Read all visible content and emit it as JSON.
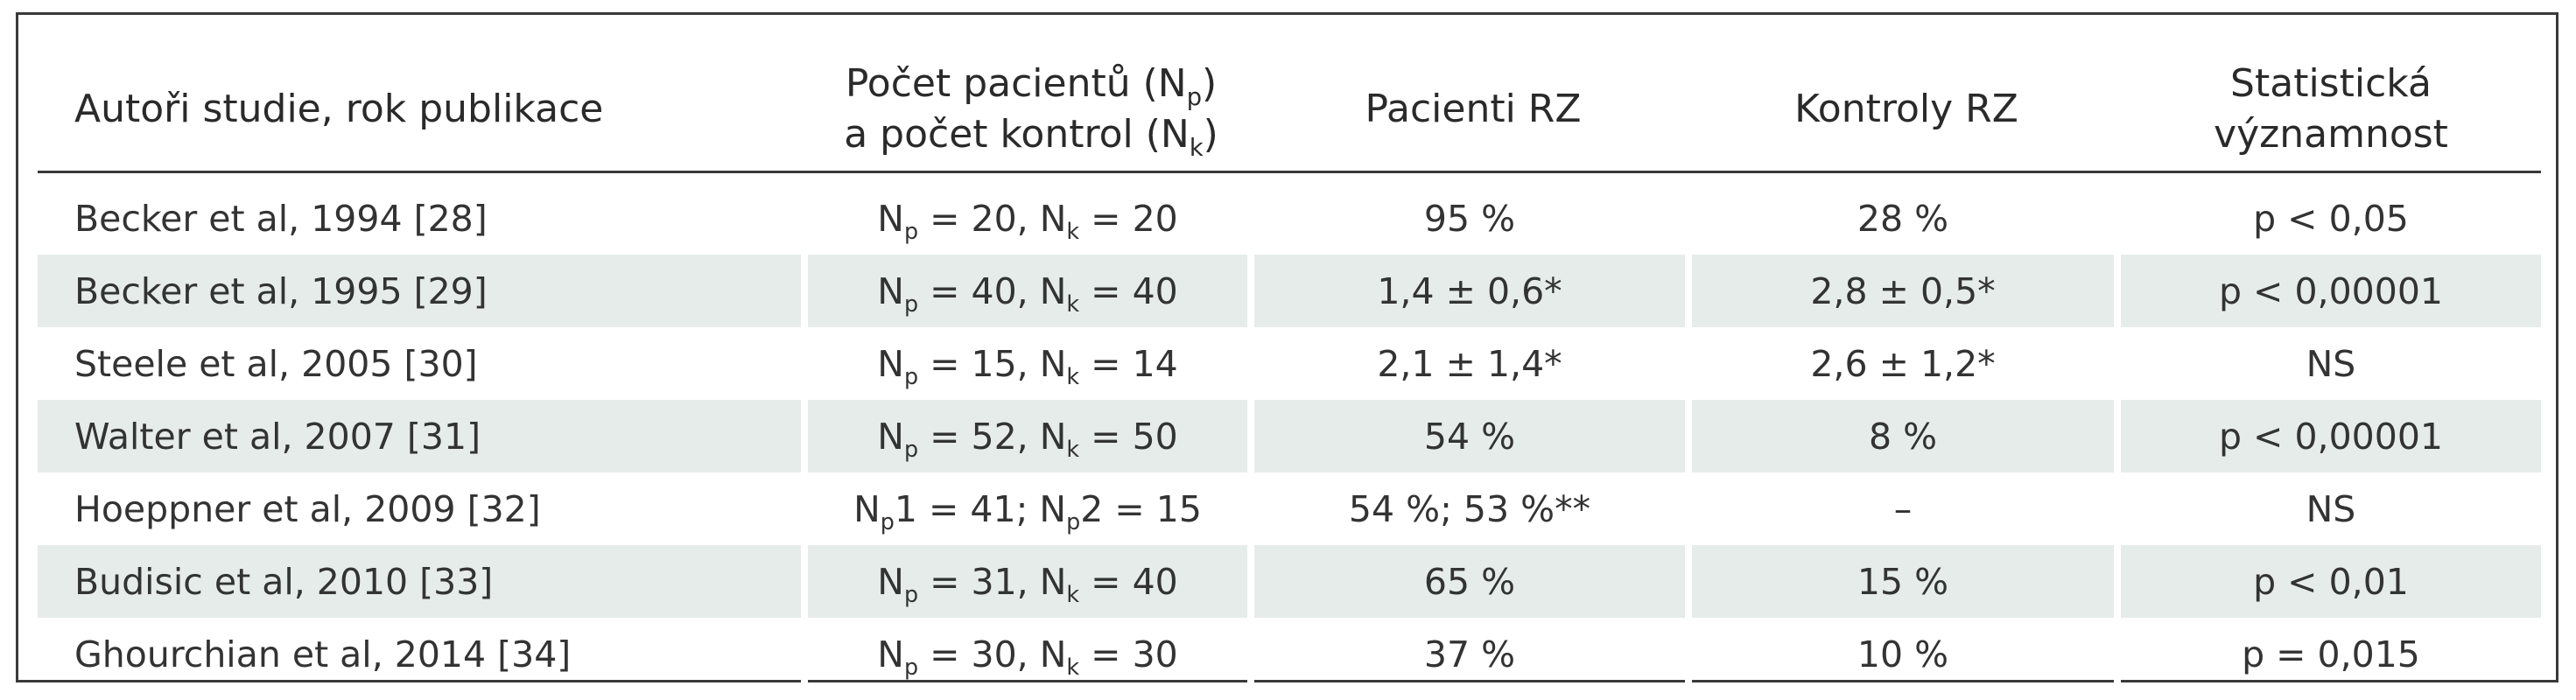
{
  "table": {
    "headers": [
      {
        "line1": "Autoři studie, rok publikace",
        "line2": ""
      },
      {
        "line1": "Počet pacientů (N",
        "sub1": "p",
        "line1_end": ")",
        "line2": "a počet kontrol (N",
        "sub2": "k",
        "line2_end": ")"
      },
      {
        "line1": "Pacienti RZ",
        "line2": ""
      },
      {
        "line1": "Kontroly RZ",
        "line2": ""
      },
      {
        "line1": "Statistická",
        "line2": "významnost"
      }
    ],
    "rows": [
      {
        "author": "Becker et al, 1994 [28]",
        "n_p": "20",
        "n_k": "20",
        "patients": "95 %",
        "controls": "28 %",
        "significance": "p < 0,05"
      },
      {
        "author": "Becker et al, 1995 [29]",
        "n_p": "40",
        "n_k": "40",
        "patients": "1,4 ± 0,6*",
        "controls": "2,8 ± 0,5*",
        "significance": "p < 0,00001"
      },
      {
        "author": "Steele et al, 2005 [30]",
        "n_p": "15",
        "n_k": "14",
        "patients": "2,1 ± 1,4*",
        "controls": "2,6 ± 1,2*",
        "significance": "NS"
      },
      {
        "author": "Walter et al, 2007 [31]",
        "n_p": "52",
        "n_k": "50",
        "patients": "54 %",
        "controls": "8 %",
        "significance": "p < 0,00001"
      },
      {
        "author": "Hoeppner et al, 2009 [32]",
        "n_p1": "41",
        "n_p2": "15",
        "patients": "54 %; 53 %**",
        "controls": "–",
        "significance": "NS"
      },
      {
        "author": "Budisic et al, 2010 [33]",
        "n_p": "31",
        "n_k": "40",
        "patients": "65 %",
        "controls": "15 %",
        "significance": "p < 0,01"
      },
      {
        "author": "Ghourchian et al, 2014 [34]",
        "n_p": "30",
        "n_k": "30",
        "patients": "37 %",
        "controls": "10 %",
        "significance": "p = 0,015"
      }
    ],
    "symbols": {
      "n": "N",
      "sub_p": "p",
      "sub_k": "k",
      "eq": " = ",
      "comma": ", ",
      "semi": "; ",
      "p1": "1",
      "p2": "2"
    },
    "colors": {
      "shade": "#e6ecea",
      "rule": "#3a3a3a",
      "text": "#333333"
    }
  }
}
